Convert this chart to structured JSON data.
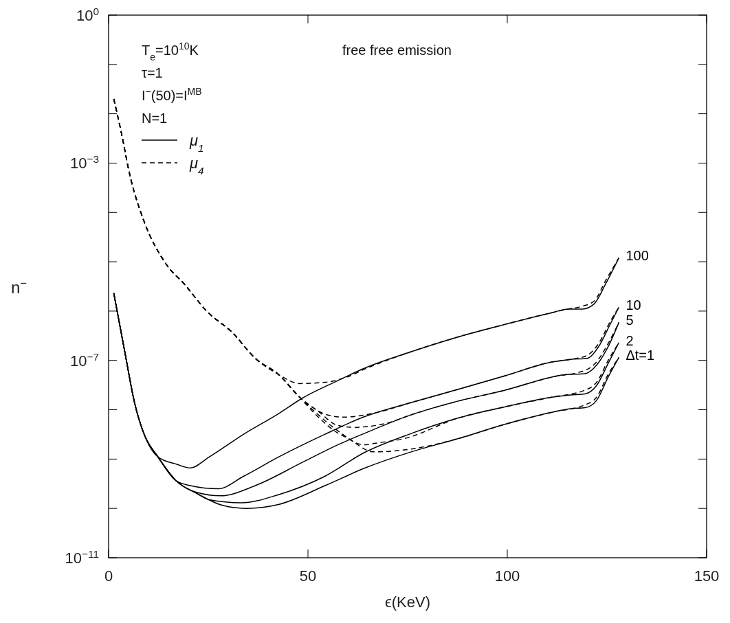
{
  "chart_data": {
    "type": "line",
    "title": "free free emission",
    "xlabel": "ϵ(KeV)",
    "ylabel": "n$^{−}$",
    "log": "y",
    "xlim": [
      0,
      150
    ],
    "xticks": [
      0,
      50,
      100,
      150
    ],
    "ylim": [
      1e-11,
      1
    ],
    "yticks": [
      {
        "value": 1,
        "label": "10$^{0}$"
      },
      {
        "value": 0.1,
        "label": null
      },
      {
        "value": 0.01,
        "label": null
      },
      {
        "value": 0.001,
        "label": "10$^{−3}$"
      },
      {
        "value": 0.0001,
        "label": null
      },
      {
        "value": 1e-05,
        "label": null
      },
      {
        "value": 1e-06,
        "label": null
      },
      {
        "value": 1e-07,
        "label": "10$^{−7}$"
      },
      {
        "value": 1e-08,
        "label": null
      },
      {
        "value": 1e-09,
        "label": null
      },
      {
        "value": 1e-10,
        "label": null
      },
      {
        "value": 1e-11,
        "label": "10$^{−11}$"
      }
    ],
    "annotations": [
      "T$_{e}$=10$^{10}$K",
      "τ=1",
      "I$^{−}$(50)=I$^{MB}$",
      "N=1",
      "μ$_{1}$",
      "μ$_{4}$"
    ],
    "series": [
      {
        "name": "100",
        "color": "#000000",
        "line_style": "solid",
        "x": [
          1.3,
          4.2,
          6.5,
          8.9,
          12.4,
          17,
          20.5,
          25.2,
          33.9,
          42.6,
          48.5,
          57.2,
          64.1,
          75.9,
          87.7,
          99.5,
          111.2,
          115.3,
          118.9,
          121.8,
          124.7,
          128
        ],
        "values": [
          2.3e-06,
          1.3e-07,
          1.4e-08,
          3.2e-09,
          1.1e-09,
          7.9e-10,
          6.6e-10,
          1.1e-09,
          3.2e-09,
          8.3e-09,
          1.7e-08,
          3.8e-08,
          6.9e-08,
          1.5e-07,
          3e-07,
          5.4e-07,
          9.3e-07,
          1.1e-06,
          1.1e-06,
          1.4e-06,
          3.6e-06,
          1.2e-05
        ]
      },
      {
        "name": "10",
        "color": "#000000",
        "line_style": "solid",
        "x": [
          1.3,
          4.2,
          6.5,
          8.9,
          12.4,
          17,
          20.5,
          27.5,
          33.9,
          42.6,
          54.3,
          64.1,
          75.9,
          87.7,
          99.5,
          111.2,
          115.9,
          120,
          122.9,
          125.9,
          128
        ],
        "values": [
          2.3e-06,
          1.3e-07,
          1.4e-08,
          3.2e-09,
          1.1e-09,
          3.6e-10,
          2.9e-10,
          2.5e-10,
          4.5e-10,
          1.1e-09,
          3.2e-09,
          7.2e-09,
          1.4e-08,
          2.6e-08,
          4.9e-08,
          9.3e-08,
          1.05e-07,
          1.1e-07,
          1.9e-07,
          5.6e-07,
          1.2e-06
        ]
      },
      {
        "name": "5",
        "color": "#000000",
        "line_style": "solid",
        "x": [
          1.3,
          4.2,
          6.5,
          8.9,
          12.4,
          17,
          22.2,
          28.1,
          36.8,
          48.5,
          57.2,
          64.1,
          75.9,
          87.7,
          99.5,
          111.2,
          114.1,
          119.5,
          121.8,
          125.3,
          128
        ],
        "values": [
          2.3e-06,
          1.3e-07,
          1.4e-08,
          3.2e-09,
          1.1e-09,
          3.6e-10,
          2.1e-10,
          1.8e-10,
          2.9e-10,
          8.5e-10,
          1.9e-09,
          3.3e-09,
          7.9e-09,
          1.5e-08,
          2.5e-08,
          4.6e-08,
          5.1e-08,
          5.4e-08,
          7.1e-08,
          1.9e-07,
          5.9e-07
        ]
      },
      {
        "name": "2",
        "color": "#000000",
        "line_style": "solid",
        "x": [
          1.3,
          4.2,
          6.5,
          8.9,
          12.4,
          17,
          22.2,
          25.2,
          33.3,
          42.6,
          54.3,
          64.1,
          75.9,
          87.7,
          99.5,
          111.2,
          115.9,
          119.5,
          122.4,
          125.3,
          128
        ],
        "values": [
          2.3e-06,
          1.3e-07,
          1.4e-08,
          3.2e-09,
          1.1e-09,
          3.6e-10,
          2e-10,
          1.5e-10,
          1.3e-10,
          1.9e-10,
          4.5e-10,
          1.35e-09,
          3.3e-09,
          6.8e-09,
          1.15e-08,
          1.8e-08,
          2e-08,
          2.1e-08,
          3.1e-08,
          8.7e-08,
          2.3e-07
        ]
      },
      {
        "name": "Δt=1",
        "color": "#000000",
        "line_style": "solid",
        "x": [
          1.3,
          4.2,
          6.5,
          8.9,
          12.4,
          17,
          22.2,
          28.6,
          34.5,
          42.6,
          54.3,
          64.1,
          75.9,
          87.7,
          99.5,
          111.2,
          115.9,
          119.5,
          122.4,
          125.3,
          128
        ],
        "values": [
          2.3e-06,
          1.3e-07,
          1.4e-08,
          3.2e-09,
          1.1e-09,
          3.6e-10,
          2e-10,
          1.15e-10,
          1e-10,
          1.2e-10,
          2.9e-10,
          6.5e-10,
          1.4e-09,
          2.6e-09,
          5.1e-09,
          8.9e-09,
          1.05e-08,
          1.1e-08,
          1.55e-08,
          4.6e-08,
          1.15e-07
        ]
      },
      {
        "color": "#000000",
        "line_style": "dashed",
        "x": [
          1.3,
          3.05,
          5.4,
          8.8,
          14.1,
          19.3,
          24.6,
          31,
          36.8,
          42.6,
          47.9,
          54.3,
          60.1,
          64.1,
          75.9,
          87.7,
          99.5,
          111.2,
          115.3,
          118.9,
          121.8,
          124.7,
          128
        ],
        "values": [
          0.02,
          0.0047,
          0.00054,
          6.9e-05,
          9.8e-06,
          3.3e-06,
          1e-06,
          3.7e-07,
          1.1e-07,
          5.2e-08,
          3.4e-08,
          3.6e-08,
          4.7e-08,
          6.6e-08,
          1.5e-07,
          3e-07,
          5.4e-07,
          9.3e-07,
          1.1e-06,
          1.26e-06,
          1.6e-06,
          4.2e-06,
          1.2e-05
        ]
      },
      {
        "color": "#000000",
        "line_style": "dashed",
        "x": [
          1.3,
          3.05,
          5.4,
          8.8,
          14.1,
          19.3,
          24.6,
          31,
          36.8,
          42.6,
          47.9,
          55.5,
          59,
          67,
          75.9,
          87.7,
          99.5,
          111.2,
          115.9,
          120,
          122.9,
          125.9,
          128
        ],
        "values": [
          0.02,
          0.0047,
          0.00054,
          6.9e-05,
          9.8e-06,
          3.3e-06,
          1e-06,
          3.7e-07,
          1.1e-07,
          5.2e-08,
          1.8e-08,
          7.6e-09,
          7.1e-09,
          8.7e-09,
          1.4e-08,
          2.6e-08,
          4.9e-08,
          9.3e-08,
          1.05e-07,
          1.26e-07,
          2.2e-07,
          6.3e-07,
          1.2e-06
        ]
      },
      {
        "color": "#000000",
        "line_style": "dashed",
        "x": [
          1.3,
          3.05,
          5.4,
          8.8,
          14.1,
          19.3,
          24.6,
          31,
          36.8,
          42.6,
          47.9,
          52.6,
          57.2,
          61.3,
          70,
          75.9,
          87.7,
          99.5,
          111.2,
          119.5,
          121.8,
          125.3,
          128
        ],
        "values": [
          0.02,
          0.0047,
          0.00054,
          6.9e-05,
          9.8e-06,
          3.3e-06,
          1e-06,
          3.7e-07,
          1.1e-07,
          5.2e-08,
          1.8e-08,
          9.3e-09,
          4.9e-09,
          4.4e-09,
          5.4e-09,
          7.9e-09,
          1.5e-08,
          2.5e-08,
          4.6e-08,
          6.3e-08,
          8.3e-08,
          2.2e-07,
          5.9e-07
        ]
      },
      {
        "color": "#000000",
        "line_style": "dashed",
        "x": [
          1.3,
          3.05,
          5.4,
          8.8,
          14.1,
          19.3,
          24.6,
          31,
          36.8,
          42.6,
          47.9,
          52.6,
          57.2,
          64.1,
          67,
          74.1,
          87.7,
          99.5,
          111.2,
          119.5,
          122.4,
          125.3,
          128
        ],
        "values": [
          0.02,
          0.0047,
          0.00054,
          6.9e-05,
          9.8e-06,
          3.3e-06,
          1e-06,
          3.7e-07,
          1.1e-07,
          5.2e-08,
          1.8e-08,
          7.9e-09,
          3.9e-09,
          1.95e-09,
          2.1e-09,
          2.6e-09,
          6.8e-09,
          1.15e-08,
          1.8e-08,
          2.5e-08,
          3.6e-08,
          1e-07,
          2.3e-07
        ]
      },
      {
        "color": "#000000",
        "line_style": "dashed",
        "x": [
          1.3,
          3.05,
          5.4,
          8.8,
          14.1,
          19.3,
          24.6,
          31,
          36.8,
          42.6,
          47.9,
          52.6,
          57.2,
          60.1,
          66.5,
          75.9,
          87.7,
          99.5,
          111.2,
          119.5,
          122.4,
          125.3,
          128
        ],
        "values": [
          0.02,
          0.0047,
          0.00054,
          6.9e-05,
          9.8e-06,
          3.3e-06,
          1e-06,
          3.7e-07,
          1.1e-07,
          5.2e-08,
          1.8e-08,
          7.1e-09,
          3.5e-09,
          2.6e-09,
          1.4e-09,
          1.6e-09,
          2.6e-09,
          5.1e-09,
          8.9e-09,
          1.26e-08,
          1.8e-08,
          5.2e-08,
          1.15e-07
        ]
      }
    ]
  }
}
